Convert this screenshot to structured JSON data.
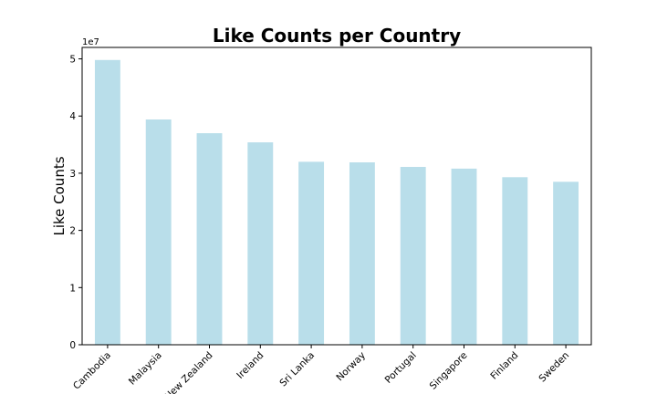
{
  "chart_data": {
    "type": "bar",
    "title": "Like Counts per Country",
    "xlabel": "",
    "ylabel": "Like Counts",
    "y_offset_label": "1e7",
    "categories": [
      "Cambodia",
      "Malaysia",
      "New Zealand",
      "Ireland",
      "Sri Lanka",
      "Norway",
      "Portugal",
      "Singapore",
      "Finland",
      "Sweden"
    ],
    "values": [
      49800000,
      39400000,
      37000000,
      35400000,
      32000000,
      31900000,
      31100000,
      30800000,
      29300000,
      28500000
    ],
    "ylim": [
      0,
      52000000
    ],
    "yticks": [
      0,
      10000000,
      20000000,
      30000000,
      40000000,
      50000000
    ],
    "ytick_labels": [
      "0",
      "1",
      "2",
      "3",
      "4",
      "5"
    ],
    "bar_color": "#add8e6",
    "grid": false,
    "legend": "none"
  }
}
